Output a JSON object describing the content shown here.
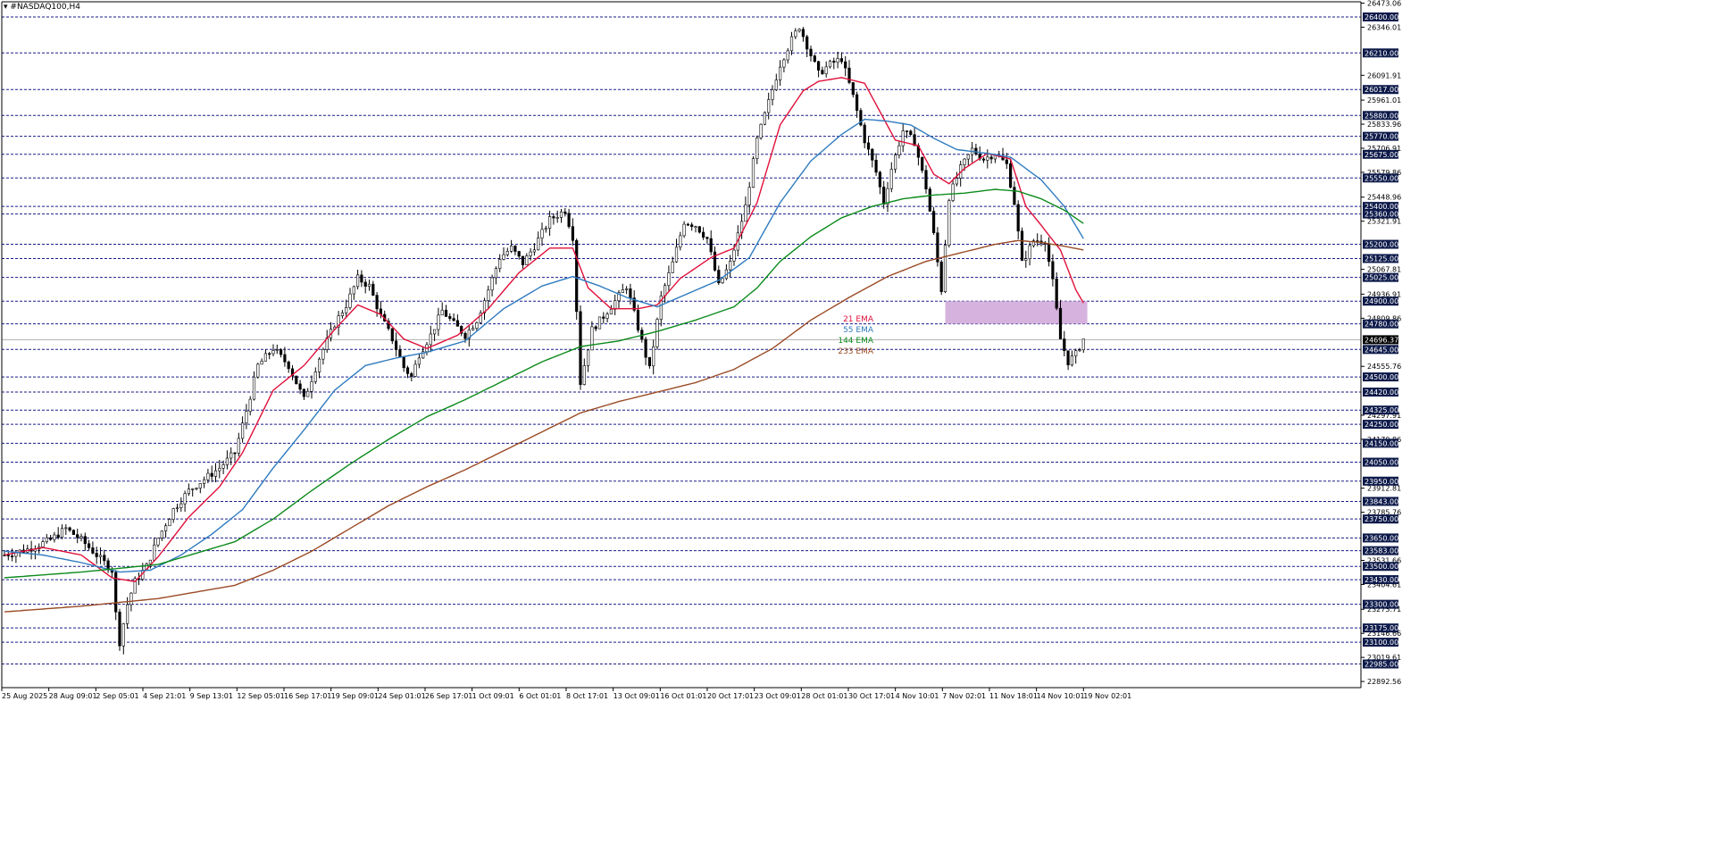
{
  "title": "#NASDAQ100,H4",
  "colors": {
    "background": "#ffffff",
    "axis": "#000000",
    "grid_line": "#1a1a8a",
    "bar": "#000000",
    "ema21": "#e0103a",
    "ema55": "#2f7bbf",
    "ema144": "#0b8a1a",
    "ema233": "#9a4a24",
    "zone": "#cfa6d8",
    "label_box": "#0d1a4a",
    "current_price_box": "#000000"
  },
  "chart_data": {
    "type": "candlestick",
    "symbol": "#NASDAQ100",
    "timeframe": "H4",
    "ylim": [
      22860,
      26480
    ],
    "y_ticks": [
      "26473.06",
      "26346.01",
      "26091.91",
      "25961.01",
      "25833.96",
      "25706.91",
      "25579.86",
      "25448.96",
      "25321.91",
      "25067.81",
      "24936.91",
      "24809.86",
      "24555.76",
      "24297.91",
      "24170.86",
      "23912.81",
      "23785.76",
      "23531.66",
      "23404.61",
      "23273.71",
      "23146.66",
      "23019.61",
      "22892.56"
    ],
    "horizontal_levels": [
      "26400.00",
      "26210.00",
      "26017.00",
      "25880.00",
      "25770.00",
      "25675.00",
      "25550.00",
      "25400.00",
      "25360.00",
      "25200.00",
      "25125.00",
      "25025.00",
      "24900.00",
      "24780.00",
      "24645.00",
      "24500.00",
      "24420.00",
      "24325.00",
      "24250.00",
      "24150.00",
      "24050.00",
      "23950.00",
      "23843.00",
      "23750.00",
      "23650.00",
      "23583.00",
      "23500.00",
      "23430.00",
      "23300.00",
      "23175.00",
      "23100.00",
      "22985.00"
    ],
    "current_price": "24696.37",
    "x_ticks": [
      "25 Aug 2025",
      "28 Aug 09:01",
      "2 Sep 05:01",
      "4 Sep 21:01",
      "9 Sep 13:01",
      "12 Sep 05:01",
      "16 Sep 17:01",
      "19 Sep 09:01",
      "24 Sep 01:01",
      "26 Sep 17:01",
      "1 Oct 09:01",
      "6 Oct 01:01",
      "8 Oct 17:01",
      "13 Oct 09:01",
      "16 Oct 01:01",
      "20 Oct 17:01",
      "23 Oct 09:01",
      "28 Oct 01:01",
      "30 Oct 17:01",
      "4 Nov 10:01",
      "7 Nov 02:01",
      "11 Nov 18:01",
      "14 Nov 10:01",
      "19 Nov 02:01"
    ],
    "zone": {
      "top": 24900,
      "bottom": 24780
    },
    "legend": [
      {
        "name": "21 EMA",
        "color": "#e0103a"
      },
      {
        "name": "55 EMA",
        "color": "#2f7bbf"
      },
      {
        "name": "144 EMA",
        "color": "#0b8a1a"
      },
      {
        "name": "233 EMA",
        "color": "#9a4a24"
      }
    ],
    "price_anchors": [
      [
        0,
        23560
      ],
      [
        6,
        23590
      ],
      [
        12,
        23640
      ],
      [
        16,
        23700
      ],
      [
        20,
        23640
      ],
      [
        24,
        23560
      ],
      [
        28,
        23480
      ],
      [
        29,
        23250
      ],
      [
        30,
        23100
      ],
      [
        32,
        23300
      ],
      [
        34,
        23420
      ],
      [
        37,
        23500
      ],
      [
        40,
        23650
      ],
      [
        44,
        23800
      ],
      [
        48,
        23900
      ],
      [
        52,
        23960
      ],
      [
        56,
        24020
      ],
      [
        60,
        24100
      ],
      [
        63,
        24320
      ],
      [
        66,
        24560
      ],
      [
        70,
        24650
      ],
      [
        74,
        24560
      ],
      [
        78,
        24380
      ],
      [
        82,
        24600
      ],
      [
        86,
        24780
      ],
      [
        89,
        24880
      ],
      [
        92,
        25020
      ],
      [
        95,
        24980
      ],
      [
        98,
        24820
      ],
      [
        101,
        24700
      ],
      [
        104,
        24550
      ],
      [
        106,
        24500
      ],
      [
        108,
        24620
      ],
      [
        111,
        24720
      ],
      [
        114,
        24850
      ],
      [
        117,
        24780
      ],
      [
        120,
        24720
      ],
      [
        123,
        24800
      ],
      [
        126,
        24960
      ],
      [
        129,
        25130
      ],
      [
        132,
        25180
      ],
      [
        135,
        25100
      ],
      [
        138,
        25190
      ],
      [
        142,
        25330
      ],
      [
        146,
        25380
      ],
      [
        148,
        25240
      ],
      [
        150,
        24470
      ],
      [
        153,
        24750
      ],
      [
        156,
        24820
      ],
      [
        159,
        24900
      ],
      [
        162,
        24980
      ],
      [
        165,
        24760
      ],
      [
        168,
        24540
      ],
      [
        171,
        24920
      ],
      [
        174,
        25100
      ],
      [
        177,
        25320
      ],
      [
        180,
        25300
      ],
      [
        183,
        25230
      ],
      [
        186,
        24980
      ],
      [
        189,
        25100
      ],
      [
        193,
        25400
      ],
      [
        196,
        25750
      ],
      [
        199,
        25950
      ],
      [
        202,
        26150
      ],
      [
        205,
        26280
      ],
      [
        207,
        26350
      ],
      [
        209,
        26250
      ],
      [
        212,
        26100
      ],
      [
        215,
        26150
      ],
      [
        218,
        26180
      ],
      [
        221,
        25980
      ],
      [
        224,
        25750
      ],
      [
        227,
        25580
      ],
      [
        229,
        25420
      ],
      [
        231,
        25600
      ],
      [
        234,
        25800
      ],
      [
        237,
        25740
      ],
      [
        240,
        25500
      ],
      [
        242,
        25250
      ],
      [
        244,
        24960
      ],
      [
        246,
        25450
      ],
      [
        249,
        25600
      ],
      [
        252,
        25700
      ],
      [
        255,
        25650
      ],
      [
        258,
        25680
      ],
      [
        261,
        25620
      ],
      [
        263,
        25420
      ],
      [
        265,
        25100
      ],
      [
        268,
        25220
      ],
      [
        271,
        25220
      ],
      [
        273,
        25000
      ],
      [
        275,
        24700
      ],
      [
        277,
        24580
      ],
      [
        279,
        24620
      ],
      [
        281,
        24700
      ]
    ],
    "ema21_anchors": [
      [
        0,
        23560
      ],
      [
        10,
        23600
      ],
      [
        20,
        23560
      ],
      [
        28,
        23440
      ],
      [
        34,
        23420
      ],
      [
        40,
        23550
      ],
      [
        48,
        23760
      ],
      [
        56,
        23920
      ],
      [
        62,
        24100
      ],
      [
        70,
        24430
      ],
      [
        78,
        24560
      ],
      [
        86,
        24750
      ],
      [
        92,
        24880
      ],
      [
        98,
        24830
      ],
      [
        104,
        24700
      ],
      [
        110,
        24650
      ],
      [
        118,
        24720
      ],
      [
        126,
        24860
      ],
      [
        134,
        25050
      ],
      [
        142,
        25180
      ],
      [
        148,
        25180
      ],
      [
        152,
        24970
      ],
      [
        158,
        24860
      ],
      [
        165,
        24860
      ],
      [
        170,
        24880
      ],
      [
        176,
        25020
      ],
      [
        184,
        25130
      ],
      [
        190,
        25180
      ],
      [
        196,
        25420
      ],
      [
        202,
        25830
      ],
      [
        208,
        26010
      ],
      [
        212,
        26060
      ],
      [
        218,
        26080
      ],
      [
        224,
        26050
      ],
      [
        228,
        25900
      ],
      [
        232,
        25750
      ],
      [
        238,
        25720
      ],
      [
        242,
        25570
      ],
      [
        246,
        25520
      ],
      [
        250,
        25600
      ],
      [
        256,
        25680
      ],
      [
        262,
        25650
      ],
      [
        266,
        25400
      ],
      [
        270,
        25300
      ],
      [
        275,
        25170
      ],
      [
        279,
        24960
      ],
      [
        281,
        24890
      ]
    ],
    "ema55_anchors": [
      [
        0,
        23580
      ],
      [
        10,
        23560
      ],
      [
        20,
        23520
      ],
      [
        30,
        23470
      ],
      [
        38,
        23480
      ],
      [
        46,
        23560
      ],
      [
        54,
        23670
      ],
      [
        62,
        23800
      ],
      [
        70,
        24020
      ],
      [
        78,
        24220
      ],
      [
        86,
        24430
      ],
      [
        94,
        24560
      ],
      [
        102,
        24600
      ],
      [
        110,
        24630
      ],
      [
        120,
        24690
      ],
      [
        130,
        24860
      ],
      [
        140,
        24980
      ],
      [
        148,
        25030
      ],
      [
        155,
        24980
      ],
      [
        162,
        24920
      ],
      [
        170,
        24870
      ],
      [
        178,
        24940
      ],
      [
        186,
        25010
      ],
      [
        194,
        25130
      ],
      [
        202,
        25420
      ],
      [
        210,
        25640
      ],
      [
        218,
        25780
      ],
      [
        224,
        25860
      ],
      [
        230,
        25850
      ],
      [
        236,
        25830
      ],
      [
        242,
        25760
      ],
      [
        248,
        25700
      ],
      [
        256,
        25680
      ],
      [
        262,
        25660
      ],
      [
        270,
        25540
      ],
      [
        276,
        25400
      ],
      [
        281,
        25230
      ]
    ],
    "ema144_anchors": [
      [
        0,
        23440
      ],
      [
        20,
        23470
      ],
      [
        40,
        23510
      ],
      [
        60,
        23630
      ],
      [
        70,
        23750
      ],
      [
        80,
        23900
      ],
      [
        90,
        24040
      ],
      [
        100,
        24170
      ],
      [
        110,
        24290
      ],
      [
        120,
        24380
      ],
      [
        130,
        24480
      ],
      [
        140,
        24580
      ],
      [
        150,
        24660
      ],
      [
        160,
        24690
      ],
      [
        170,
        24740
      ],
      [
        180,
        24800
      ],
      [
        190,
        24870
      ],
      [
        196,
        24970
      ],
      [
        202,
        25110
      ],
      [
        210,
        25240
      ],
      [
        218,
        25340
      ],
      [
        226,
        25400
      ],
      [
        234,
        25440
      ],
      [
        242,
        25460
      ],
      [
        250,
        25470
      ],
      [
        258,
        25490
      ],
      [
        264,
        25480
      ],
      [
        270,
        25440
      ],
      [
        276,
        25380
      ],
      [
        281,
        25310
      ]
    ],
    "ema233_anchors": [
      [
        0,
        23260
      ],
      [
        20,
        23290
      ],
      [
        40,
        23330
      ],
      [
        60,
        23400
      ],
      [
        70,
        23480
      ],
      [
        80,
        23580
      ],
      [
        90,
        23700
      ],
      [
        100,
        23820
      ],
      [
        110,
        23920
      ],
      [
        120,
        24010
      ],
      [
        130,
        24110
      ],
      [
        140,
        24210
      ],
      [
        150,
        24310
      ],
      [
        160,
        24370
      ],
      [
        170,
        24420
      ],
      [
        180,
        24470
      ],
      [
        190,
        24540
      ],
      [
        200,
        24650
      ],
      [
        210,
        24800
      ],
      [
        220,
        24920
      ],
      [
        230,
        25030
      ],
      [
        240,
        25110
      ],
      [
        250,
        25160
      ],
      [
        258,
        25200
      ],
      [
        264,
        25220
      ],
      [
        270,
        25210
      ],
      [
        276,
        25190
      ],
      [
        281,
        25170
      ]
    ]
  }
}
